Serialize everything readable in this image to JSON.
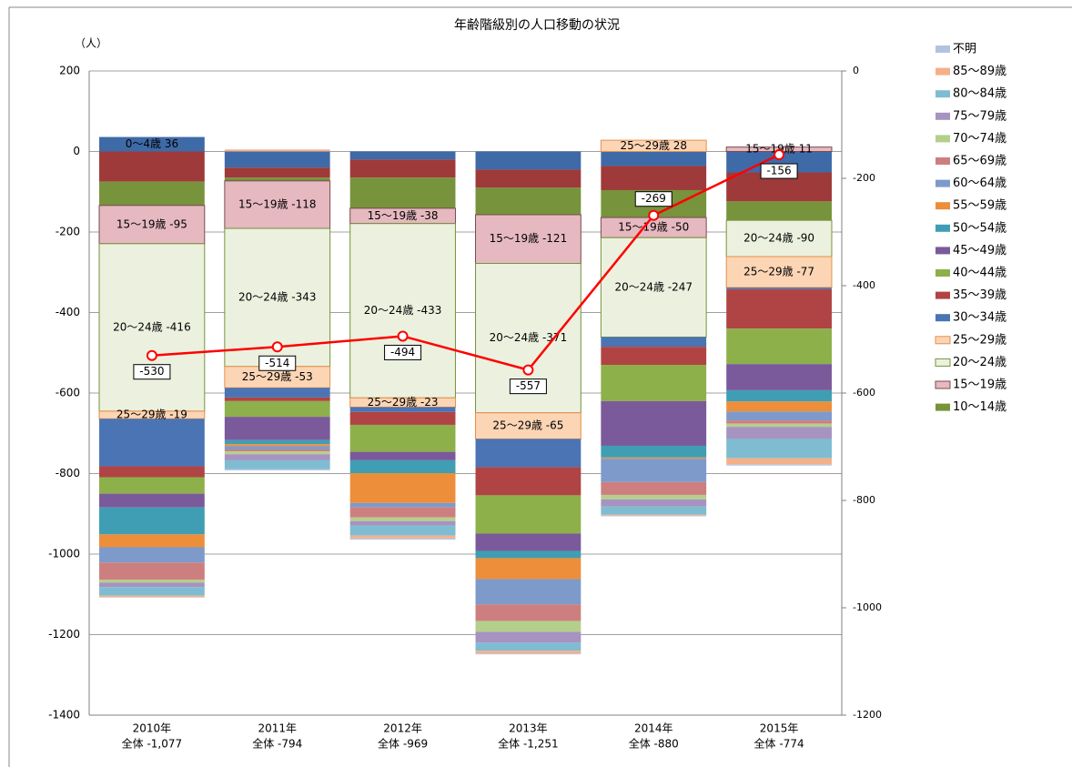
{
  "chart_data": {
    "type": "bar",
    "title": "年齢階級別の人口移動の状況",
    "ylabel": "（人）",
    "categories": [
      "2010年",
      "2011年",
      "2012年",
      "2013年",
      "2014年",
      "2015年"
    ],
    "subcategories": [
      "全体 -1,077",
      "全体 -794",
      "全体 -969",
      "全体 -1,251",
      "全体 -880",
      "全体 -774"
    ],
    "ylim": [
      -1400,
      200
    ],
    "yticks": [
      200,
      0,
      -200,
      -400,
      -600,
      -800,
      -1000,
      -1200,
      -1400
    ],
    "y2lim": [
      -1200,
      0
    ],
    "y2ticks": [
      0,
      -200,
      -400,
      -600,
      -800,
      -1000,
      -1200
    ],
    "grid": true,
    "legend": "right",
    "series": [
      {
        "name": null,
        "color": "#3f6aa8",
        "values": [
          36,
          -40,
          -20,
          -45,
          -36,
          -52
        ],
        "value_labels": [
          "0～4歳 36",
          null,
          null,
          null,
          null,
          null
        ]
      },
      {
        "name": null,
        "color": "#9e3a3a",
        "values": [
          -75,
          -25,
          -45,
          -45,
          -60,
          -72
        ]
      },
      {
        "name": "10～14歳",
        "color": "#77933c",
        "values": [
          -59,
          -8,
          -76,
          -67,
          -68,
          -47
        ]
      },
      {
        "name": "15～19歳",
        "color": "#e6b9c0",
        "edgecolor": "#7a4a50",
        "values": [
          -95,
          -118,
          -38,
          -121,
          -50,
          11
        ],
        "value_labels": [
          "15～19歳 -95",
          "15～19歳 -118",
          "15～19歳 -38",
          "15～19歳 -121",
          "15～19歳 -50",
          "15～19歳 11"
        ]
      },
      {
        "name": "20～24歳",
        "color": "#ebf1de",
        "edgecolor": "#77933c",
        "values": [
          -416,
          -343,
          -433,
          -371,
          -247,
          -90
        ],
        "value_labels": [
          "20～24歳 -416",
          "20～24歳 -343",
          "20～24歳 -433",
          "20～24歳 -371",
          "20～24歳 -247",
          "20～24歳 -90"
        ]
      },
      {
        "name": "25～29歳",
        "color": "#fcd5b5",
        "edgecolor": "#e6904a",
        "values": [
          -19,
          -53,
          -23,
          -65,
          28,
          -77
        ],
        "value_labels": [
          "25～29歳 -19",
          "25～29歳 -53",
          "25～29歳 -23",
          "25～29歳 -65",
          "25～29歳 28",
          "25～29歳 -77"
        ]
      },
      {
        "name": "30～34歳",
        "color": "#4a74b4",
        "values": [
          -118,
          -24,
          -12,
          -70,
          -24,
          -4
        ]
      },
      {
        "name": "35～39歳",
        "color": "#b04444",
        "values": [
          -27,
          -9,
          -32,
          -70,
          -45,
          -98
        ]
      },
      {
        "name": "40～44歳",
        "color": "#8db04a",
        "values": [
          -41,
          -39,
          -67,
          -95,
          -90,
          -88
        ]
      },
      {
        "name": "45～49歳",
        "color": "#7a5a9a",
        "values": [
          -34,
          -58,
          -21,
          -43,
          -111,
          -65
        ]
      },
      {
        "name": "50～54歳",
        "color": "#3f9eb4",
        "values": [
          -67,
          -10,
          -32,
          -18,
          -29,
          -28
        ]
      },
      {
        "name": "55～59歳",
        "color": "#ec8e3a",
        "values": [
          -32,
          -5,
          -74,
          -52,
          -3,
          -25
        ]
      },
      {
        "name": "60～64歳",
        "color": "#7d9acb",
        "values": [
          -38,
          -8,
          -11,
          -63,
          -58,
          -22
        ]
      },
      {
        "name": "65～69歳",
        "color": "#cd7f7f",
        "values": [
          -43,
          -5,
          -25,
          -41,
          -32,
          -8
        ]
      },
      {
        "name": "70～74歳",
        "color": "#b4cf8c",
        "values": [
          -7,
          -7,
          -9,
          -27,
          -11,
          -8
        ]
      },
      {
        "name": "75～79歳",
        "color": "#a693c0",
        "values": [
          -11,
          -15,
          -11,
          -27,
          -18,
          -30
        ]
      },
      {
        "name": "80～84歳",
        "color": "#7fbcd2",
        "values": [
          -21,
          -22,
          -25,
          -20,
          -20,
          -48
        ]
      },
      {
        "name": "85～89歳",
        "color": "#f5b088",
        "values": [
          -4,
          5,
          -7,
          -7,
          -2,
          -15
        ]
      },
      {
        "name": "不明",
        "color": "#b3c3df",
        "values": [
          -1,
          -3,
          -3,
          -2,
          -2,
          -3
        ]
      }
    ],
    "line": {
      "color": "#ff0000",
      "axis": "y2",
      "values": [
        -530,
        -514,
        -494,
        -557,
        -269,
        -156
      ]
    }
  }
}
